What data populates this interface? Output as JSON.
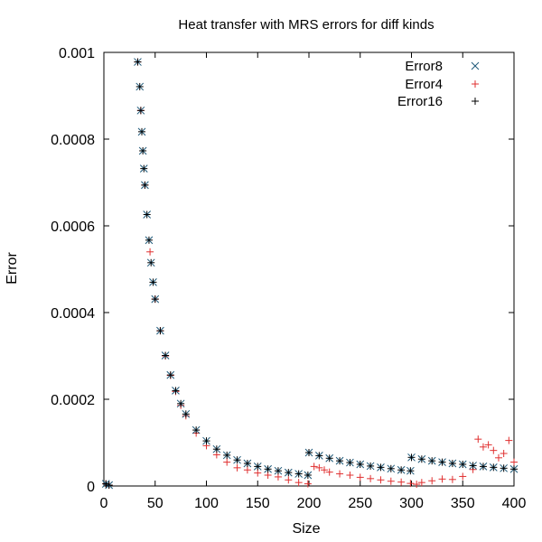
{
  "chart_data": {
    "type": "scatter",
    "title": "Heat transfer with MRS errors for diff kinds",
    "xlabel": "Size",
    "ylabel": "Error",
    "xlim": [
      0,
      400
    ],
    "ylim": [
      0,
      0.001
    ],
    "x_ticks": [
      0,
      50,
      100,
      150,
      200,
      250,
      300,
      350,
      400
    ],
    "x_tick_labels": [
      "0",
      "50",
      "100",
      "150",
      "200",
      "250",
      "300",
      "350",
      "400"
    ],
    "y_ticks": [
      0,
      0.0002,
      0.0004,
      0.0006,
      0.0008,
      0.001
    ],
    "y_tick_labels": [
      "0",
      "0.0002",
      "0.0004",
      "0.0006",
      "0.0008",
      "0.001"
    ],
    "grid": false,
    "legend_position": "top-right",
    "series": [
      {
        "name": "Error8",
        "marker": "x",
        "color": "#1f5a7a",
        "points": [
          [
            2,
            5e-06
          ],
          [
            5,
            2e-06
          ],
          [
            33,
            0.000978
          ],
          [
            35,
            0.000921
          ],
          [
            36,
            0.000866
          ],
          [
            37,
            0.000817
          ],
          [
            38,
            0.000773
          ],
          [
            39,
            0.000732
          ],
          [
            40,
            0.000694
          ],
          [
            42,
            0.000626
          ],
          [
            44,
            0.000567
          ],
          [
            46,
            0.000515
          ],
          [
            48,
            0.00047
          ],
          [
            50,
            0.000431
          ],
          [
            55,
            0.000358
          ],
          [
            60,
            0.000301
          ],
          [
            65,
            0.000256
          ],
          [
            70,
            0.00022
          ],
          [
            75,
            0.00019
          ],
          [
            80,
            0.000166
          ],
          [
            90,
            0.000129
          ],
          [
            100,
            0.000104
          ],
          [
            110,
            8.5e-05
          ],
          [
            120,
            7.1e-05
          ],
          [
            130,
            6e-05
          ],
          [
            140,
            5.2e-05
          ],
          [
            150,
            4.5e-05
          ],
          [
            160,
            3.9e-05
          ],
          [
            170,
            3.5e-05
          ],
          [
            180,
            3.1e-05
          ],
          [
            190,
            2.8e-05
          ],
          [
            199,
            2.5e-05
          ],
          [
            200,
            7.7e-05
          ],
          [
            210,
            7e-05
          ],
          [
            220,
            6.4e-05
          ],
          [
            230,
            5.8e-05
          ],
          [
            240,
            5.4e-05
          ],
          [
            250,
            5e-05
          ],
          [
            260,
            4.6e-05
          ],
          [
            270,
            4.3e-05
          ],
          [
            280,
            4e-05
          ],
          [
            290,
            3.7e-05
          ],
          [
            299,
            3.5e-05
          ],
          [
            300,
            6.6e-05
          ],
          [
            310,
            6.2e-05
          ],
          [
            320,
            5.8e-05
          ],
          [
            330,
            5.5e-05
          ],
          [
            340,
            5.2e-05
          ],
          [
            350,
            5e-05
          ],
          [
            360,
            4.7e-05
          ],
          [
            370,
            4.5e-05
          ],
          [
            380,
            4.3e-05
          ],
          [
            390,
            4.1e-05
          ],
          [
            400,
            3.9e-05
          ]
        ]
      },
      {
        "name": "Error4",
        "marker": "+",
        "color": "#e03030",
        "points": [
          [
            2,
            5e-06
          ],
          [
            5,
            2e-06
          ],
          [
            33,
            0.000978
          ],
          [
            36,
            0.000866
          ],
          [
            40,
            0.000694
          ],
          [
            45,
            0.00054
          ],
          [
            50,
            0.000431
          ],
          [
            55,
            0.000358
          ],
          [
            60,
            0.0003
          ],
          [
            65,
            0.000255
          ],
          [
            70,
            0.000218
          ],
          [
            75,
            0.000186
          ],
          [
            80,
            0.000162
          ],
          [
            90,
            0.000122
          ],
          [
            100,
            9.3e-05
          ],
          [
            110,
            7.2e-05
          ],
          [
            120,
            5.5e-05
          ],
          [
            130,
            4.2e-05
          ],
          [
            140,
            3.7e-05
          ],
          [
            150,
            3e-05
          ],
          [
            160,
            2.5e-05
          ],
          [
            170,
            2.1e-05
          ],
          [
            180,
            1.4e-05
          ],
          [
            190,
            8e-06
          ],
          [
            199,
            5e-06
          ],
          [
            205,
            4.5e-05
          ],
          [
            210,
            4.2e-05
          ],
          [
            215,
            3.7e-05
          ],
          [
            220,
            3.2e-05
          ],
          [
            230,
            2.8e-05
          ],
          [
            240,
            2.5e-05
          ],
          [
            250,
            2e-05
          ],
          [
            260,
            1.7e-05
          ],
          [
            270,
            1.4e-05
          ],
          [
            280,
            1.1e-05
          ],
          [
            290,
            9e-06
          ],
          [
            299,
            6e-06
          ],
          [
            305,
            4e-06
          ],
          [
            310,
            8e-06
          ],
          [
            320,
            1.2e-05
          ],
          [
            330,
            1.6e-05
          ],
          [
            340,
            1.5e-05
          ],
          [
            350,
            2.2e-05
          ],
          [
            360,
            3.8e-05
          ],
          [
            365,
            0.000108
          ],
          [
            370,
            9e-05
          ],
          [
            375,
            9.5e-05
          ],
          [
            380,
            8.2e-05
          ],
          [
            385,
            6.5e-05
          ],
          [
            390,
            7.5e-05
          ],
          [
            395,
            0.000105
          ],
          [
            400,
            5.5e-05
          ]
        ]
      },
      {
        "name": "Error16",
        "marker": "+",
        "color": "#000000",
        "points": [
          [
            2,
            5e-06
          ],
          [
            5,
            2e-06
          ],
          [
            33,
            0.000978
          ],
          [
            35,
            0.000921
          ],
          [
            36,
            0.000866
          ],
          [
            37,
            0.000817
          ],
          [
            38,
            0.000773
          ],
          [
            39,
            0.000732
          ],
          [
            40,
            0.000694
          ],
          [
            42,
            0.000626
          ],
          [
            44,
            0.000567
          ],
          [
            46,
            0.000515
          ],
          [
            48,
            0.00047
          ],
          [
            50,
            0.000431
          ],
          [
            55,
            0.000358
          ],
          [
            60,
            0.000301
          ],
          [
            65,
            0.000256
          ],
          [
            70,
            0.00022
          ],
          [
            75,
            0.00019
          ],
          [
            80,
            0.000166
          ],
          [
            90,
            0.000129
          ],
          [
            100,
            0.000104
          ],
          [
            110,
            8.5e-05
          ],
          [
            120,
            7.1e-05
          ],
          [
            130,
            6e-05
          ],
          [
            140,
            5.2e-05
          ],
          [
            150,
            4.5e-05
          ],
          [
            160,
            3.9e-05
          ],
          [
            170,
            3.5e-05
          ],
          [
            180,
            3.1e-05
          ],
          [
            190,
            2.8e-05
          ],
          [
            199,
            2.5e-05
          ],
          [
            200,
            7.7e-05
          ],
          [
            210,
            7e-05
          ],
          [
            220,
            6.4e-05
          ],
          [
            230,
            5.8e-05
          ],
          [
            240,
            5.4e-05
          ],
          [
            250,
            5e-05
          ],
          [
            260,
            4.6e-05
          ],
          [
            270,
            4.3e-05
          ],
          [
            280,
            4e-05
          ],
          [
            290,
            3.7e-05
          ],
          [
            299,
            3.5e-05
          ],
          [
            300,
            6.6e-05
          ],
          [
            310,
            6.2e-05
          ],
          [
            320,
            5.8e-05
          ],
          [
            330,
            5.5e-05
          ],
          [
            340,
            5.2e-05
          ],
          [
            350,
            5e-05
          ],
          [
            360,
            4.7e-05
          ],
          [
            370,
            4.5e-05
          ],
          [
            380,
            4.3e-05
          ],
          [
            390,
            4.1e-05
          ],
          [
            400,
            3.9e-05
          ]
        ]
      }
    ]
  }
}
